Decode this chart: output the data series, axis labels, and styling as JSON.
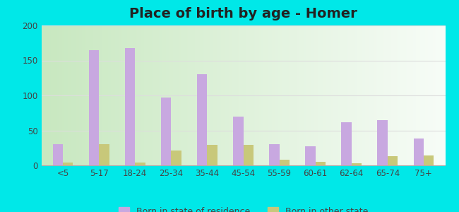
{
  "title": "Place of birth by age - Homer",
  "categories": [
    "<5",
    "5-17",
    "18-24",
    "25-34",
    "35-44",
    "45-54",
    "55-59",
    "60-61",
    "62-64",
    "65-74",
    "75+"
  ],
  "born_in_state": [
    30,
    165,
    168,
    97,
    130,
    70,
    30,
    27,
    62,
    65,
    38
  ],
  "born_in_other": [
    4,
    30,
    4,
    21,
    29,
    29,
    8,
    5,
    3,
    13,
    14
  ],
  "color_state": "#c8a8e0",
  "color_other": "#c8c87a",
  "legend_state": "Born in state of residence",
  "legend_other": "Born in other state",
  "ylim": [
    0,
    200
  ],
  "yticks": [
    0,
    50,
    100,
    150,
    200
  ],
  "outer_background": "#00e8e8",
  "title_fontsize": 14,
  "bar_width": 0.28,
  "bg_left_color": "#c8e8c0",
  "bg_right_color": "#f0f8f0",
  "grid_color": "#dddddd",
  "tick_label_color": "#444444",
  "title_color": "#222222"
}
